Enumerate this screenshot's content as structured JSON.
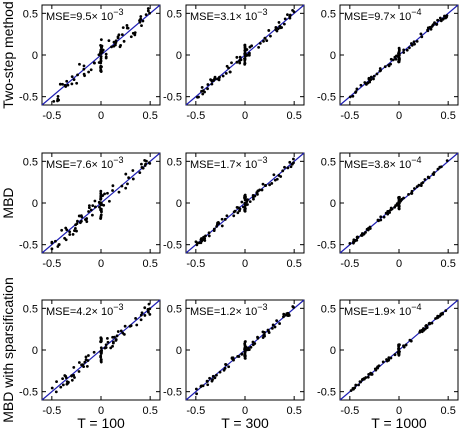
{
  "row_labels": [
    "Two-step method",
    "MBD",
    "MBD with sparsification"
  ],
  "col_labels": [
    "T = 100",
    "T = 300",
    "T = 1000"
  ],
  "style": {
    "point_color": "#000000",
    "line_color": "#1f1fb4"
  },
  "chart_data": [
    {
      "type": "scatter",
      "row": 0,
      "col": 0,
      "annotation": {
        "prefix": "MSE=9.5× 10",
        "exponent": "−3"
      },
      "xlim": [
        -0.6,
        0.6
      ],
      "ylim": [
        -0.6,
        0.6
      ],
      "xticks": [
        "-0.5",
        "0",
        "0.5"
      ],
      "yticks": [
        "-0.5",
        "0",
        "0.5"
      ],
      "spread": 0.11,
      "seed": 11
    },
    {
      "type": "scatter",
      "row": 0,
      "col": 1,
      "annotation": {
        "prefix": "MSE=3.1× 10",
        "exponent": "−3"
      },
      "xlim": [
        -0.6,
        0.6
      ],
      "ylim": [
        -0.6,
        0.6
      ],
      "xticks": [
        "-0.5",
        "0",
        "0.5"
      ],
      "yticks": [
        "-0.5",
        "0",
        "0.5"
      ],
      "spread": 0.055,
      "seed": 12
    },
    {
      "type": "scatter",
      "row": 0,
      "col": 2,
      "annotation": {
        "prefix": "MSE=9.7× 10",
        "exponent": "−4"
      },
      "xlim": [
        -0.6,
        0.6
      ],
      "ylim": [
        -0.6,
        0.6
      ],
      "xticks": [
        "-0.5",
        "0",
        "0.5"
      ],
      "yticks": [
        "-0.5",
        "0",
        "0.5"
      ],
      "spread": 0.03,
      "seed": 13
    },
    {
      "type": "scatter",
      "row": 1,
      "col": 0,
      "annotation": {
        "prefix": "MSE=7.6× 10",
        "exponent": "−3"
      },
      "xlim": [
        -0.6,
        0.6
      ],
      "ylim": [
        -0.6,
        0.6
      ],
      "xticks": [
        "-0.5",
        "0",
        "0.5"
      ],
      "yticks": [
        "-0.5",
        "0",
        "0.5"
      ],
      "spread": 0.095,
      "seed": 21
    },
    {
      "type": "scatter",
      "row": 1,
      "col": 1,
      "annotation": {
        "prefix": "MSE=1.7× 10",
        "exponent": "−3"
      },
      "xlim": [
        -0.6,
        0.6
      ],
      "ylim": [
        -0.6,
        0.6
      ],
      "xticks": [
        "-0.5",
        "0",
        "0.5"
      ],
      "yticks": [
        "-0.5",
        "0",
        "0.5"
      ],
      "spread": 0.045,
      "seed": 22
    },
    {
      "type": "scatter",
      "row": 1,
      "col": 2,
      "annotation": {
        "prefix": "MSE=3.8× 10",
        "exponent": "−4"
      },
      "xlim": [
        -0.6,
        0.6
      ],
      "ylim": [
        -0.6,
        0.6
      ],
      "xticks": [
        "-0.5",
        "0",
        "0.5"
      ],
      "yticks": [
        "-0.5",
        "0",
        "0.5"
      ],
      "spread": 0.02,
      "seed": 23
    },
    {
      "type": "scatter",
      "row": 2,
      "col": 0,
      "annotation": {
        "prefix": "MSE=4.2× 10",
        "exponent": "−3"
      },
      "xlim": [
        -0.6,
        0.6
      ],
      "ylim": [
        -0.6,
        0.6
      ],
      "xticks": [
        "-0.5",
        "0",
        "0.5"
      ],
      "yticks": [
        "-0.5",
        "0",
        "0.5"
      ],
      "spread": 0.075,
      "seed": 31
    },
    {
      "type": "scatter",
      "row": 2,
      "col": 1,
      "annotation": {
        "prefix": "MSE=1.2× 10",
        "exponent": "−3"
      },
      "xlim": [
        -0.6,
        0.6
      ],
      "ylim": [
        -0.6,
        0.6
      ],
      "xticks": [
        "-0.5",
        "0",
        "0.5"
      ],
      "yticks": [
        "-0.5",
        "0",
        "0.5"
      ],
      "spread": 0.04,
      "seed": 32
    },
    {
      "type": "scatter",
      "row": 2,
      "col": 2,
      "annotation": {
        "prefix": "MSE=1.9× 10",
        "exponent": "−4"
      },
      "xlim": [
        -0.6,
        0.6
      ],
      "ylim": [
        -0.6,
        0.6
      ],
      "xticks": [
        "-0.5",
        "0",
        "0.5"
      ],
      "yticks": [
        "-0.5",
        "0",
        "0.5"
      ],
      "spread": 0.02,
      "seed": 33
    }
  ]
}
